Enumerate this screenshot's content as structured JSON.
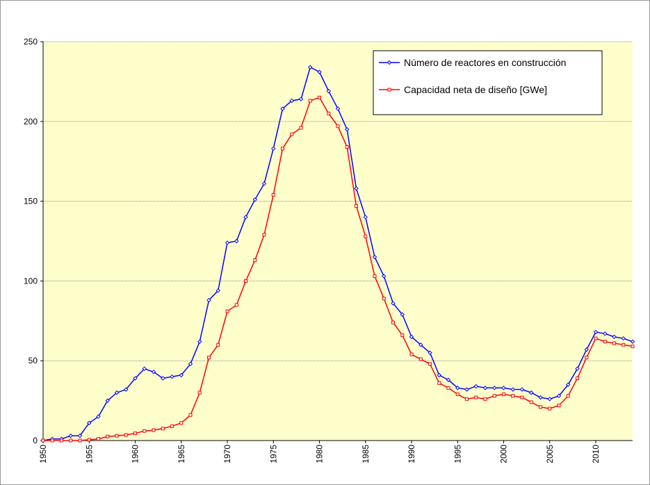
{
  "chart_data": {
    "type": "line",
    "x": [
      1950,
      1951,
      1952,
      1953,
      1954,
      1955,
      1956,
      1957,
      1958,
      1959,
      1960,
      1961,
      1962,
      1963,
      1964,
      1965,
      1966,
      1967,
      1968,
      1969,
      1970,
      1971,
      1972,
      1973,
      1974,
      1975,
      1976,
      1977,
      1978,
      1979,
      1980,
      1981,
      1982,
      1983,
      1984,
      1985,
      1986,
      1987,
      1988,
      1989,
      1990,
      1991,
      1992,
      1993,
      1994,
      1995,
      1996,
      1997,
      1998,
      1999,
      2000,
      2001,
      2002,
      2003,
      2004,
      2005,
      2006,
      2007,
      2008,
      2009,
      2010,
      2011,
      2012,
      2013,
      2014
    ],
    "series": [
      {
        "name": "Número de reactores en construcción",
        "color": "#0000ff",
        "marker": "diamond",
        "values": [
          0,
          1,
          1,
          3,
          3,
          11,
          15,
          25,
          30,
          32,
          39,
          45,
          43,
          39,
          40,
          41,
          48,
          62,
          88,
          94,
          124,
          125,
          140,
          151,
          161,
          183,
          208,
          213,
          214,
          234,
          231,
          219,
          208,
          195,
          158,
          140,
          115,
          103,
          86,
          79,
          65,
          60,
          55,
          41,
          38,
          33,
          32,
          34,
          33,
          33,
          33,
          32,
          32,
          30,
          27,
          26,
          28,
          35,
          45,
          57,
          68,
          67,
          65,
          64,
          62
        ]
      },
      {
        "name": "Capacidad neta de diseño [GWe]",
        "color": "#ff0000",
        "marker": "square",
        "values": [
          0,
          0,
          0,
          0,
          0,
          0.5,
          1,
          2.5,
          3,
          3.5,
          4.5,
          6,
          6.5,
          7.5,
          9,
          11,
          16,
          30,
          52,
          60,
          81,
          85,
          100,
          113,
          129,
          154,
          183,
          192,
          196,
          213,
          215,
          205,
          197,
          184,
          147,
          128,
          103,
          89,
          74,
          66,
          54,
          51,
          48,
          36,
          33,
          29,
          26,
          27,
          26,
          28,
          29,
          28,
          27,
          24,
          21,
          20,
          22,
          28,
          39,
          52,
          64,
          62,
          61,
          60,
          59
        ]
      }
    ],
    "xlim": [
      1950,
      2014
    ],
    "xticks": [
      1950,
      1955,
      1960,
      1965,
      1970,
      1975,
      1980,
      1985,
      1990,
      1995,
      2000,
      2005,
      2010
    ],
    "ylim": [
      0,
      250
    ],
    "yticks": [
      0,
      50,
      100,
      150,
      200,
      250
    ],
    "grid": true,
    "legend": "upper right",
    "background": "#ffffcc"
  }
}
